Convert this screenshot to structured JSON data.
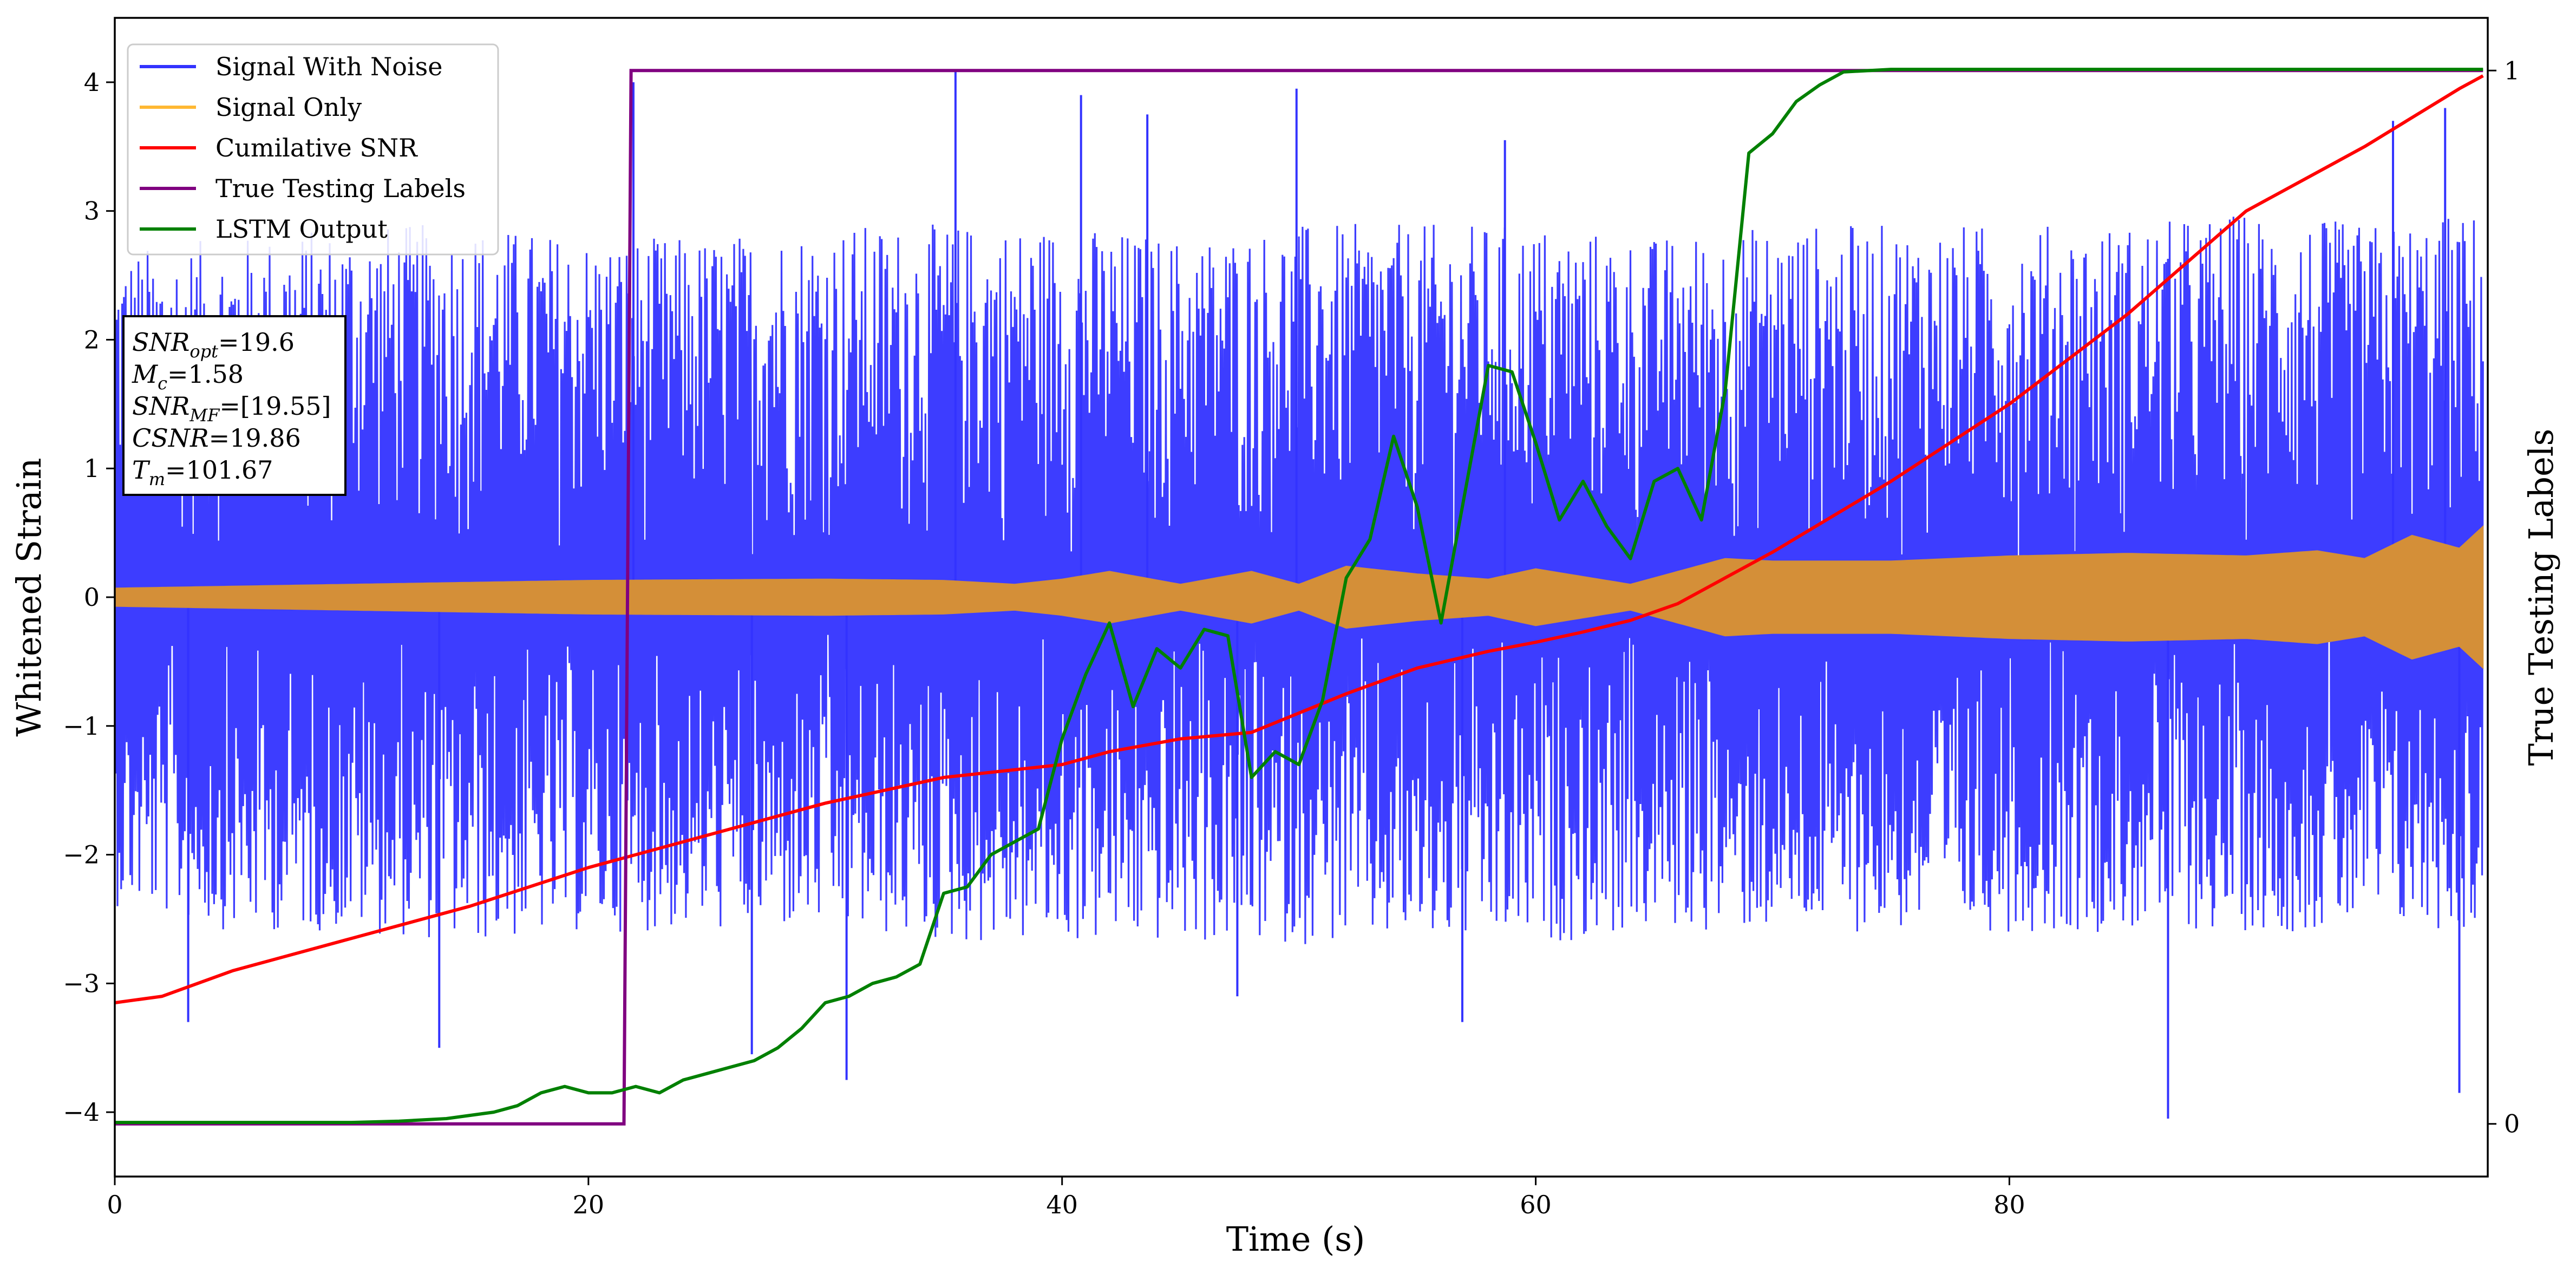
{
  "chart_data": {
    "type": "line",
    "xlabel": "Time (s)",
    "ylabel": "Whitened Strain",
    "y2label": "True Testing Labels",
    "xlim": [
      0,
      100.2
    ],
    "ylim": [
      -4.5,
      4.5
    ],
    "y2lim": [
      -0.05,
      1.05
    ],
    "xticks": [
      0,
      20,
      40,
      60,
      80
    ],
    "xtick_labels": [
      "0",
      "20",
      "40",
      "60",
      "80"
    ],
    "yticks": [
      -4,
      -3,
      -2,
      -1,
      0,
      1,
      2,
      3,
      4
    ],
    "ytick_labels": [
      "−4",
      "−3",
      "−2",
      "−1",
      "0",
      "1",
      "2",
      "3",
      "4"
    ],
    "y2ticks": [
      0,
      1
    ],
    "y2tick_labels": [
      "0",
      "1"
    ],
    "grid": false,
    "legend_position": "upper-left",
    "legend": [
      {
        "label": "Signal With Noise",
        "color": "#3333ff"
      },
      {
        "label": "Signal Only",
        "color": "#ffb833"
      },
      {
        "label": "Cumilative SNR",
        "color": "#ff0000"
      },
      {
        "label": "True Testing Labels",
        "color": "#800080"
      },
      {
        "label": "LSTM Output",
        "color": "#008000"
      }
    ],
    "annotation": [
      {
        "base": "SNR",
        "sub": "opt",
        "value": "=19.6"
      },
      {
        "base": "M",
        "sub": "c",
        "value": "=1.58"
      },
      {
        "base": "SNR",
        "sub": "MF",
        "value": "=[19.55]"
      },
      {
        "base": "CSNR",
        "sub": "",
        "value": "=19.86"
      },
      {
        "base": "T",
        "sub": "m",
        "value": "=101.67"
      }
    ],
    "series": [
      {
        "name": "Signal With Noise",
        "color": "#3333ff",
        "axis": "left",
        "noise_band": {
          "x": [
            0,
            5,
            10,
            15,
            20,
            25,
            30,
            35,
            40,
            45,
            50,
            55,
            60,
            65,
            70,
            75,
            80,
            85,
            90,
            95,
            100
          ],
          "upper": [
            2.7,
            2.8,
            2.9,
            2.9,
            2.8,
            2.8,
            2.9,
            2.9,
            2.9,
            2.8,
            2.9,
            2.9,
            2.9,
            2.8,
            2.9,
            2.9,
            2.9,
            2.9,
            3.0,
            2.9,
            3.0
          ],
          "lower": [
            -2.4,
            -2.6,
            -2.6,
            -2.7,
            -2.6,
            -2.6,
            -2.6,
            -2.7,
            -2.7,
            -2.7,
            -2.7,
            -2.7,
            -2.7,
            -2.6,
            -2.6,
            -2.6,
            -2.6,
            -2.6,
            -2.6,
            -2.6,
            -2.6
          ]
        },
        "spikes": [
          [
            35.5,
            4.1
          ],
          [
            40.8,
            3.9
          ],
          [
            43.6,
            3.75
          ],
          [
            49.9,
            3.95
          ],
          [
            58.7,
            3.55
          ],
          [
            86.7,
            -4.05
          ],
          [
            98.4,
            3.8
          ],
          [
            99.0,
            -3.85
          ],
          [
            21.9,
            4.0
          ],
          [
            30.9,
            -3.75
          ],
          [
            13.7,
            -3.5
          ],
          [
            3.1,
            -3.3
          ],
          [
            56.9,
            -3.3
          ],
          [
            47.4,
            -3.1
          ],
          [
            96.2,
            3.7
          ],
          [
            26.9,
            -3.55
          ]
        ]
      },
      {
        "name": "Signal Only",
        "color": "#ffb833",
        "axis": "left",
        "envelope": {
          "x": [
            0,
            10,
            20,
            30,
            35,
            38,
            40,
            42,
            45,
            48,
            50,
            52,
            55,
            58,
            60,
            62,
            64,
            66,
            68,
            70,
            75,
            80,
            85,
            90,
            93,
            95,
            97,
            99,
            100
          ],
          "amp": [
            0.07,
            0.1,
            0.13,
            0.14,
            0.13,
            0.1,
            0.14,
            0.2,
            0.1,
            0.2,
            0.1,
            0.24,
            0.18,
            0.14,
            0.22,
            0.16,
            0.1,
            0.2,
            0.3,
            0.28,
            0.28,
            0.32,
            0.34,
            0.32,
            0.36,
            0.3,
            0.48,
            0.38,
            0.55
          ]
        }
      },
      {
        "name": "Cumilative SNR",
        "color": "#ff0000",
        "axis": "left",
        "x": [
          0,
          2,
          5,
          10,
          15,
          20,
          25,
          30,
          35,
          40,
          42,
          45,
          48,
          50,
          52,
          55,
          58,
          60,
          62,
          64,
          66,
          68,
          70,
          75,
          80,
          85,
          90,
          95,
          99,
          100
        ],
        "y": [
          -3.15,
          -3.1,
          -2.9,
          -2.65,
          -2.4,
          -2.1,
          -1.85,
          -1.6,
          -1.4,
          -1.3,
          -1.2,
          -1.1,
          -1.05,
          -0.9,
          -0.75,
          -0.55,
          -0.42,
          -0.35,
          -0.27,
          -0.18,
          -0.05,
          0.15,
          0.35,
          0.9,
          1.5,
          2.2,
          3.0,
          3.5,
          3.95,
          4.05
        ]
      },
      {
        "name": "True Testing Labels",
        "color": "#800080",
        "axis": "right",
        "x": [
          0,
          21.5,
          21.8,
          100
        ],
        "y": [
          0,
          0,
          1,
          1
        ]
      },
      {
        "name": "LSTM Output",
        "color": "#008000",
        "axis": "left",
        "x": [
          0,
          10,
          12,
          14,
          16,
          17,
          18,
          19,
          20,
          21,
          22,
          23,
          24,
          25,
          26,
          27,
          28,
          29,
          30,
          31,
          32,
          33,
          34,
          35,
          36,
          37,
          38,
          39,
          40,
          41,
          42,
          43,
          44,
          45,
          46,
          47,
          48,
          49,
          50,
          51,
          52,
          53,
          54,
          55,
          56,
          57,
          58,
          59,
          60,
          61,
          62,
          63,
          64,
          65,
          66,
          67,
          68,
          69,
          70,
          71,
          72,
          73,
          75,
          78,
          100
        ],
        "y": [
          -4.08,
          -4.08,
          -4.07,
          -4.05,
          -4.0,
          -3.95,
          -3.85,
          -3.8,
          -3.85,
          -3.85,
          -3.8,
          -3.85,
          -3.75,
          -3.7,
          -3.65,
          -3.6,
          -3.5,
          -3.35,
          -3.15,
          -3.1,
          -3.0,
          -2.95,
          -2.85,
          -2.3,
          -2.25,
          -2.0,
          -1.9,
          -1.8,
          -1.1,
          -0.6,
          -0.2,
          -0.85,
          -0.4,
          -0.55,
          -0.25,
          -0.3,
          -1.4,
          -1.2,
          -1.3,
          -0.8,
          0.15,
          0.45,
          1.25,
          0.7,
          -0.2,
          0.8,
          1.8,
          1.75,
          1.2,
          0.6,
          0.9,
          0.55,
          0.3,
          0.9,
          1.0,
          0.6,
          1.6,
          3.45,
          3.6,
          3.85,
          3.98,
          4.08,
          4.1,
          4.1,
          4.1
        ]
      }
    ]
  }
}
